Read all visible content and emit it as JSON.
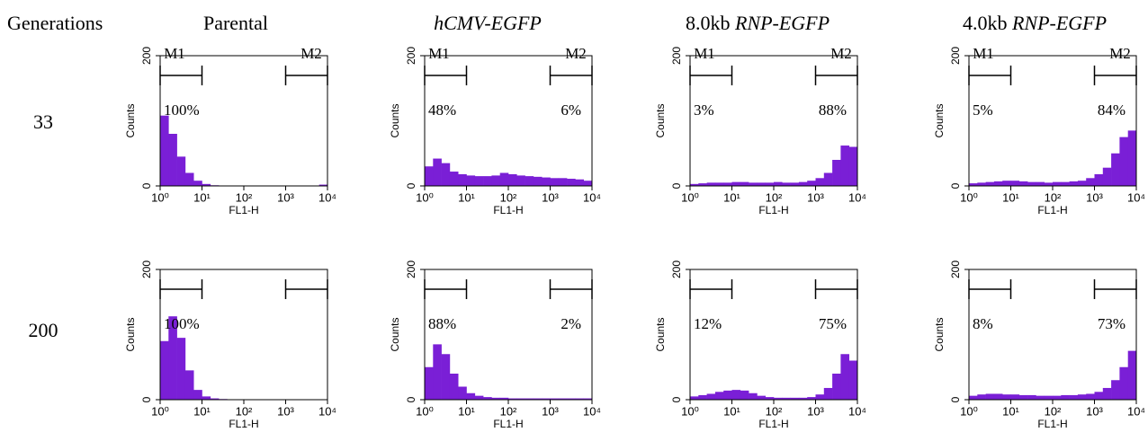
{
  "column_headers": [
    "Generations",
    "Parental",
    "hCMV-EGFP",
    "8.0kb RNP-EGFP",
    "4.0kb RNP-EGFP"
  ],
  "row_headers": [
    "33",
    "200"
  ],
  "chart_data": [
    {
      "type": "histogram",
      "color": "#7a1fd6",
      "log_x": true,
      "xlabel": "FL1-H",
      "ylabel": "Counts",
      "xlim": [
        1,
        10000
      ],
      "xticks": [
        {
          "value": 1,
          "label": "10⁰"
        },
        {
          "value": 10,
          "label": "10¹"
        },
        {
          "value": 100,
          "label": "10²"
        },
        {
          "value": 1000,
          "label": "10³"
        },
        {
          "value": 10000,
          "label": "10⁴"
        }
      ],
      "ylim": [
        0,
        200
      ],
      "yticks": [
        0,
        200
      ],
      "bins": [
        1,
        1.585,
        2.512,
        3.981,
        6.31,
        10,
        15.85,
        25.12,
        39.81,
        63.1,
        100,
        158.5,
        251.2,
        398.1,
        631,
        1000,
        1585,
        2512,
        3981,
        6310,
        10000
      ],
      "values": [
        108,
        80,
        45,
        20,
        8,
        3,
        1,
        0,
        0,
        0,
        0,
        0,
        0,
        0,
        0,
        0,
        0,
        0,
        0,
        2
      ],
      "gates": [
        {
          "name": "M1",
          "range": [
            1,
            10
          ],
          "label": "100%"
        },
        {
          "name": "M2",
          "range": [
            1000,
            10000
          ]
        }
      ]
    },
    {
      "type": "histogram",
      "color": "#7a1fd6",
      "log_x": true,
      "xlabel": "FL1-H",
      "ylabel": "Counts",
      "xlim": [
        1,
        10000
      ],
      "xticks": [
        {
          "value": 1,
          "label": "10⁰"
        },
        {
          "value": 10,
          "label": "10¹"
        },
        {
          "value": 100,
          "label": "10²"
        },
        {
          "value": 1000,
          "label": "10³"
        },
        {
          "value": 10000,
          "label": "10⁴"
        }
      ],
      "ylim": [
        0,
        200
      ],
      "yticks": [
        0,
        200
      ],
      "bins": [
        1,
        1.585,
        2.512,
        3.981,
        6.31,
        10,
        15.85,
        25.12,
        39.81,
        63.1,
        100,
        158.5,
        251.2,
        398.1,
        631,
        1000,
        1585,
        2512,
        3981,
        6310,
        10000
      ],
      "values": [
        30,
        42,
        35,
        22,
        18,
        16,
        15,
        15,
        16,
        20,
        18,
        16,
        15,
        14,
        13,
        12,
        12,
        11,
        10,
        8
      ],
      "gates": [
        {
          "name": "M1",
          "range": [
            1,
            10
          ],
          "label": "48%"
        },
        {
          "name": "M2",
          "range": [
            1000,
            10000
          ],
          "label": "6%"
        }
      ]
    },
    {
      "type": "histogram",
      "color": "#7a1fd6",
      "log_x": true,
      "xlabel": "FL1-H",
      "ylabel": "Counts",
      "xlim": [
        1,
        10000
      ],
      "xticks": [
        {
          "value": 1,
          "label": "10⁰"
        },
        {
          "value": 10,
          "label": "10¹"
        },
        {
          "value": 100,
          "label": "10²"
        },
        {
          "value": 1000,
          "label": "10³"
        },
        {
          "value": 10000,
          "label": "10⁴"
        }
      ],
      "ylim": [
        0,
        200
      ],
      "yticks": [
        0,
        200
      ],
      "bins": [
        1,
        1.585,
        2.512,
        3.981,
        6.31,
        10,
        15.85,
        25.12,
        39.81,
        63.1,
        100,
        158.5,
        251.2,
        398.1,
        631,
        1000,
        1585,
        2512,
        3981,
        6310,
        10000
      ],
      "values": [
        3,
        4,
        5,
        5,
        5,
        6,
        6,
        5,
        5,
        5,
        6,
        5,
        5,
        6,
        8,
        12,
        20,
        40,
        62,
        60
      ],
      "gates": [
        {
          "name": "M1",
          "range": [
            1,
            10
          ],
          "label": "3%"
        },
        {
          "name": "M2",
          "range": [
            1000,
            10000
          ],
          "label": "88%"
        }
      ]
    },
    {
      "type": "histogram",
      "color": "#7a1fd6",
      "log_x": true,
      "xlabel": "FL1-H",
      "ylabel": "Counts",
      "xlim": [
        1,
        10000
      ],
      "xticks": [
        {
          "value": 1,
          "label": "10⁰"
        },
        {
          "value": 10,
          "label": "10¹"
        },
        {
          "value": 100,
          "label": "10²"
        },
        {
          "value": 1000,
          "label": "10³"
        },
        {
          "value": 10000,
          "label": "10⁴"
        }
      ],
      "ylim": [
        0,
        200
      ],
      "yticks": [
        0,
        200
      ],
      "bins": [
        1,
        1.585,
        2.512,
        3.981,
        6.31,
        10,
        15.85,
        25.12,
        39.81,
        63.1,
        100,
        158.5,
        251.2,
        398.1,
        631,
        1000,
        1585,
        2512,
        3981,
        6310,
        10000
      ],
      "values": [
        4,
        5,
        6,
        7,
        8,
        8,
        7,
        6,
        6,
        5,
        6,
        6,
        7,
        8,
        12,
        18,
        28,
        50,
        75,
        85
      ],
      "gates": [
        {
          "name": "M1",
          "range": [
            1,
            10
          ],
          "label": "5%"
        },
        {
          "name": "M2",
          "range": [
            1000,
            10000
          ],
          "label": "84%"
        }
      ]
    },
    {
      "type": "histogram",
      "color": "#7a1fd6",
      "log_x": true,
      "xlabel": "FL1-H",
      "ylabel": "Counts",
      "xlim": [
        1,
        10000
      ],
      "xticks": [
        {
          "value": 1,
          "label": "10⁰"
        },
        {
          "value": 10,
          "label": "10¹"
        },
        {
          "value": 100,
          "label": "10²"
        },
        {
          "value": 1000,
          "label": "10³"
        },
        {
          "value": 10000,
          "label": "10⁴"
        }
      ],
      "ylim": [
        0,
        200
      ],
      "yticks": [
        0,
        200
      ],
      "bins": [
        1,
        1.585,
        2.512,
        3.981,
        6.31,
        10,
        15.85,
        25.12,
        39.81,
        63.1,
        100,
        158.5,
        251.2,
        398.1,
        631,
        1000,
        1585,
        2512,
        3981,
        6310,
        10000
      ],
      "values": [
        90,
        128,
        95,
        45,
        15,
        5,
        2,
        1,
        0,
        0,
        0,
        0,
        0,
        0,
        0,
        0,
        0,
        0,
        0,
        0
      ],
      "gates": [
        {
          "range": [
            1,
            10
          ],
          "label": "100%"
        },
        {
          "range": [
            1000,
            10000
          ]
        }
      ]
    },
    {
      "type": "histogram",
      "color": "#7a1fd6",
      "log_x": true,
      "xlabel": "FL1-H",
      "ylabel": "Counts",
      "xlim": [
        1,
        10000
      ],
      "xticks": [
        {
          "value": 1,
          "label": "10⁰"
        },
        {
          "value": 10,
          "label": "10¹"
        },
        {
          "value": 100,
          "label": "10²"
        },
        {
          "value": 1000,
          "label": "10³"
        },
        {
          "value": 10000,
          "label": "10⁴"
        }
      ],
      "ylim": [
        0,
        200
      ],
      "yticks": [
        0,
        200
      ],
      "bins": [
        1,
        1.585,
        2.512,
        3.981,
        6.31,
        10,
        15.85,
        25.12,
        39.81,
        63.1,
        100,
        158.5,
        251.2,
        398.1,
        631,
        1000,
        1585,
        2512,
        3981,
        6310,
        10000
      ],
      "values": [
        50,
        85,
        70,
        40,
        20,
        10,
        6,
        4,
        3,
        3,
        2,
        2,
        2,
        2,
        2,
        2,
        2,
        2,
        2,
        2
      ],
      "gates": [
        {
          "range": [
            1,
            10
          ],
          "label": "88%"
        },
        {
          "range": [
            1000,
            10000
          ],
          "label": "2%"
        }
      ]
    },
    {
      "type": "histogram",
      "color": "#7a1fd6",
      "log_x": true,
      "xlabel": "FL1-H",
      "ylabel": "Counts",
      "xlim": [
        1,
        10000
      ],
      "xticks": [
        {
          "value": 1,
          "label": "10⁰"
        },
        {
          "value": 10,
          "label": "10¹"
        },
        {
          "value": 100,
          "label": "10²"
        },
        {
          "value": 1000,
          "label": "10³"
        },
        {
          "value": 10000,
          "label": "10⁴"
        }
      ],
      "ylim": [
        0,
        200
      ],
      "yticks": [
        0,
        200
      ],
      "bins": [
        1,
        1.585,
        2.512,
        3.981,
        6.31,
        10,
        15.85,
        25.12,
        39.81,
        63.1,
        100,
        158.5,
        251.2,
        398.1,
        631,
        1000,
        1585,
        2512,
        3981,
        6310,
        10000
      ],
      "values": [
        5,
        7,
        9,
        12,
        14,
        15,
        14,
        10,
        6,
        4,
        3,
        3,
        3,
        3,
        4,
        8,
        18,
        40,
        70,
        60
      ],
      "gates": [
        {
          "range": [
            1,
            10
          ],
          "label": "12%"
        },
        {
          "range": [
            1000,
            10000
          ],
          "label": "75%"
        }
      ]
    },
    {
      "type": "histogram",
      "color": "#7a1fd6",
      "log_x": true,
      "xlabel": "FL1-H",
      "ylabel": "Counts",
      "xlim": [
        1,
        10000
      ],
      "xticks": [
        {
          "value": 1,
          "label": "10⁰"
        },
        {
          "value": 10,
          "label": "10¹"
        },
        {
          "value": 100,
          "label": "10²"
        },
        {
          "value": 1000,
          "label": "10³"
        },
        {
          "value": 10000,
          "label": "10⁴"
        }
      ],
      "ylim": [
        0,
        200
      ],
      "yticks": [
        0,
        200
      ],
      "bins": [
        1,
        1.585,
        2.512,
        3.981,
        6.31,
        10,
        15.85,
        25.12,
        39.81,
        63.1,
        100,
        158.5,
        251.2,
        398.1,
        631,
        1000,
        1585,
        2512,
        3981,
        6310,
        10000
      ],
      "values": [
        6,
        8,
        9,
        9,
        8,
        8,
        7,
        7,
        6,
        6,
        6,
        7,
        7,
        8,
        9,
        12,
        18,
        30,
        50,
        75
      ],
      "gates": [
        {
          "range": [
            1,
            10
          ],
          "label": "8%"
        },
        {
          "range": [
            1000,
            10000
          ],
          "label": "73%"
        }
      ]
    }
  ]
}
